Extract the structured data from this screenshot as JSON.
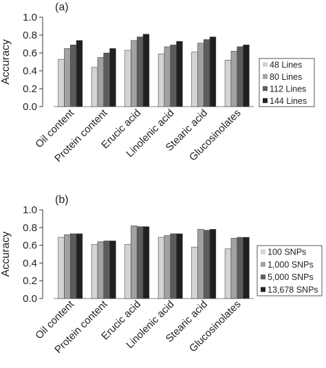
{
  "chart_data": [
    {
      "type": "bar",
      "panel_label": "(a)",
      "ylabel": "Accuracy",
      "ylim": [
        0,
        1.0
      ],
      "yticks": [
        "0.0",
        "0.2",
        "0.4",
        "0.6",
        "0.8",
        "1.0"
      ],
      "categories": [
        "Oil content",
        "Protein content",
        "Erucic acid",
        "Linolenic acid",
        "Stearic acid",
        "Glucosinolates"
      ],
      "legend_position": "right",
      "series": [
        {
          "name": "48 Lines",
          "color": "#d4d4d4",
          "values": [
            0.53,
            0.44,
            0.63,
            0.59,
            0.61,
            0.52
          ]
        },
        {
          "name": "80 Lines",
          "color": "#a2a2a2",
          "values": [
            0.65,
            0.55,
            0.74,
            0.67,
            0.71,
            0.62
          ]
        },
        {
          "name": "112 Lines",
          "color": "#5c5c5c",
          "values": [
            0.69,
            0.6,
            0.78,
            0.69,
            0.75,
            0.67
          ]
        },
        {
          "name": "144 Lines",
          "color": "#202020",
          "values": [
            0.74,
            0.65,
            0.81,
            0.73,
            0.78,
            0.69
          ]
        }
      ]
    },
    {
      "type": "bar",
      "panel_label": "(b)",
      "ylabel": "Accuracy",
      "ylim": [
        0,
        1.0
      ],
      "yticks": [
        "0.0",
        "0.2",
        "0.4",
        "0.6",
        "0.8",
        "1.0"
      ],
      "categories": [
        "Oil content",
        "Protein content",
        "Erucic acid",
        "Linolenic acid",
        "Stearic acid",
        "Glucosinolates"
      ],
      "legend_position": "right",
      "series": [
        {
          "name": "100 SNPs",
          "color": "#d4d4d4",
          "values": [
            0.69,
            0.61,
            0.61,
            0.69,
            0.58,
            0.56
          ]
        },
        {
          "name": "1,000 SNPs",
          "color": "#a2a2a2",
          "values": [
            0.72,
            0.64,
            0.82,
            0.71,
            0.78,
            0.68
          ]
        },
        {
          "name": "5,000 SNPs",
          "color": "#5c5c5c",
          "values": [
            0.73,
            0.65,
            0.81,
            0.73,
            0.77,
            0.69
          ]
        },
        {
          "name": "13,678 SNPs",
          "color": "#202020",
          "values": [
            0.73,
            0.65,
            0.81,
            0.73,
            0.78,
            0.69
          ]
        }
      ]
    }
  ]
}
